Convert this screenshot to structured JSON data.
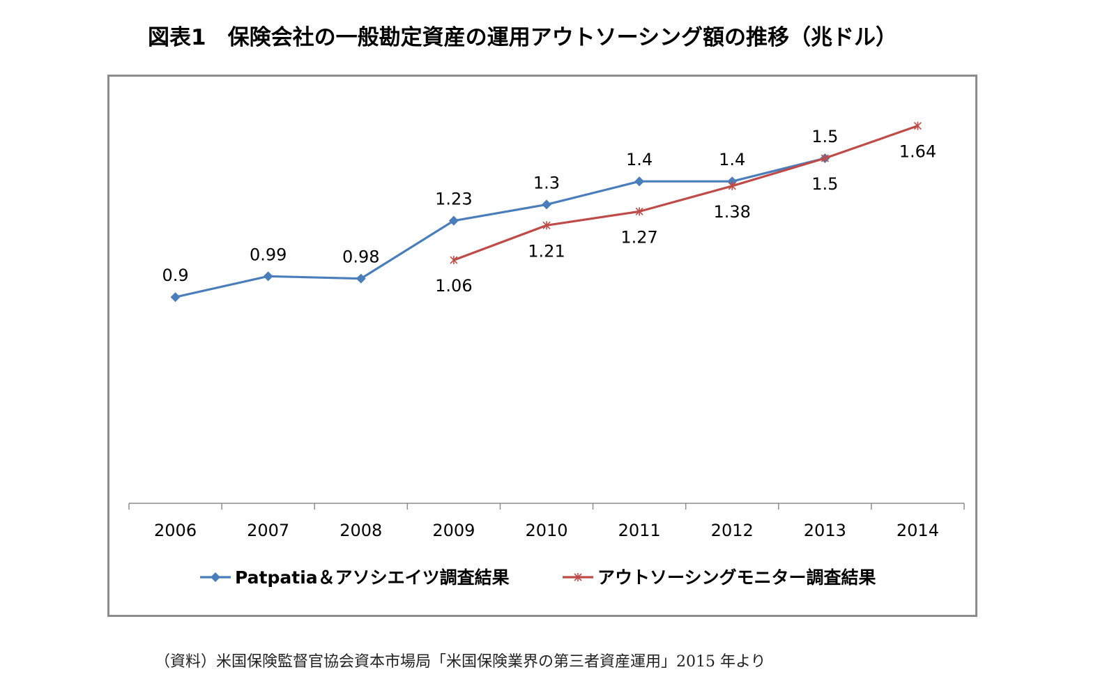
{
  "title": "図表1　保険会社の一般勘定資産の運用アウトソーシング額の推移（兆ドル）",
  "source": "（資料）米国保険監督官協会資本市場局「米国保険業界の第三者資産運用」2015 年より",
  "chart_data": {
    "type": "line",
    "title": "図表1　保険会社の一般勘定資産の運用アウトソーシング額の推移（兆ドル）",
    "xlabel": "",
    "ylabel": "",
    "ylim": [
      0,
      1.8
    ],
    "grid": false,
    "legend_position": "bottom",
    "categories": [
      "2006",
      "2007",
      "2008",
      "2009",
      "2010",
      "2011",
      "2012",
      "2013",
      "2014"
    ],
    "series": [
      {
        "name": "Patpatia＆アソシエイツ調査結果",
        "color": "#4a7ebb",
        "marker": "diamond",
        "values": [
          0.9,
          0.99,
          0.98,
          1.23,
          1.3,
          1.4,
          1.4,
          1.5,
          null
        ],
        "labels": [
          "0.9",
          "0.99",
          "0.98",
          "1.23",
          "1.3",
          "1.4",
          "1.4",
          "1.5",
          null
        ],
        "label_position": "above"
      },
      {
        "name": "アウトソーシングモニター調査結果",
        "color": "#be4b48",
        "marker": "asterisk",
        "values": [
          null,
          null,
          null,
          1.06,
          1.21,
          1.27,
          1.38,
          1.5,
          1.64
        ],
        "labels": [
          null,
          null,
          null,
          "1.06",
          "1.21",
          "1.27",
          "1.38",
          "1.5",
          "1.64"
        ],
        "label_position": "below"
      }
    ]
  }
}
